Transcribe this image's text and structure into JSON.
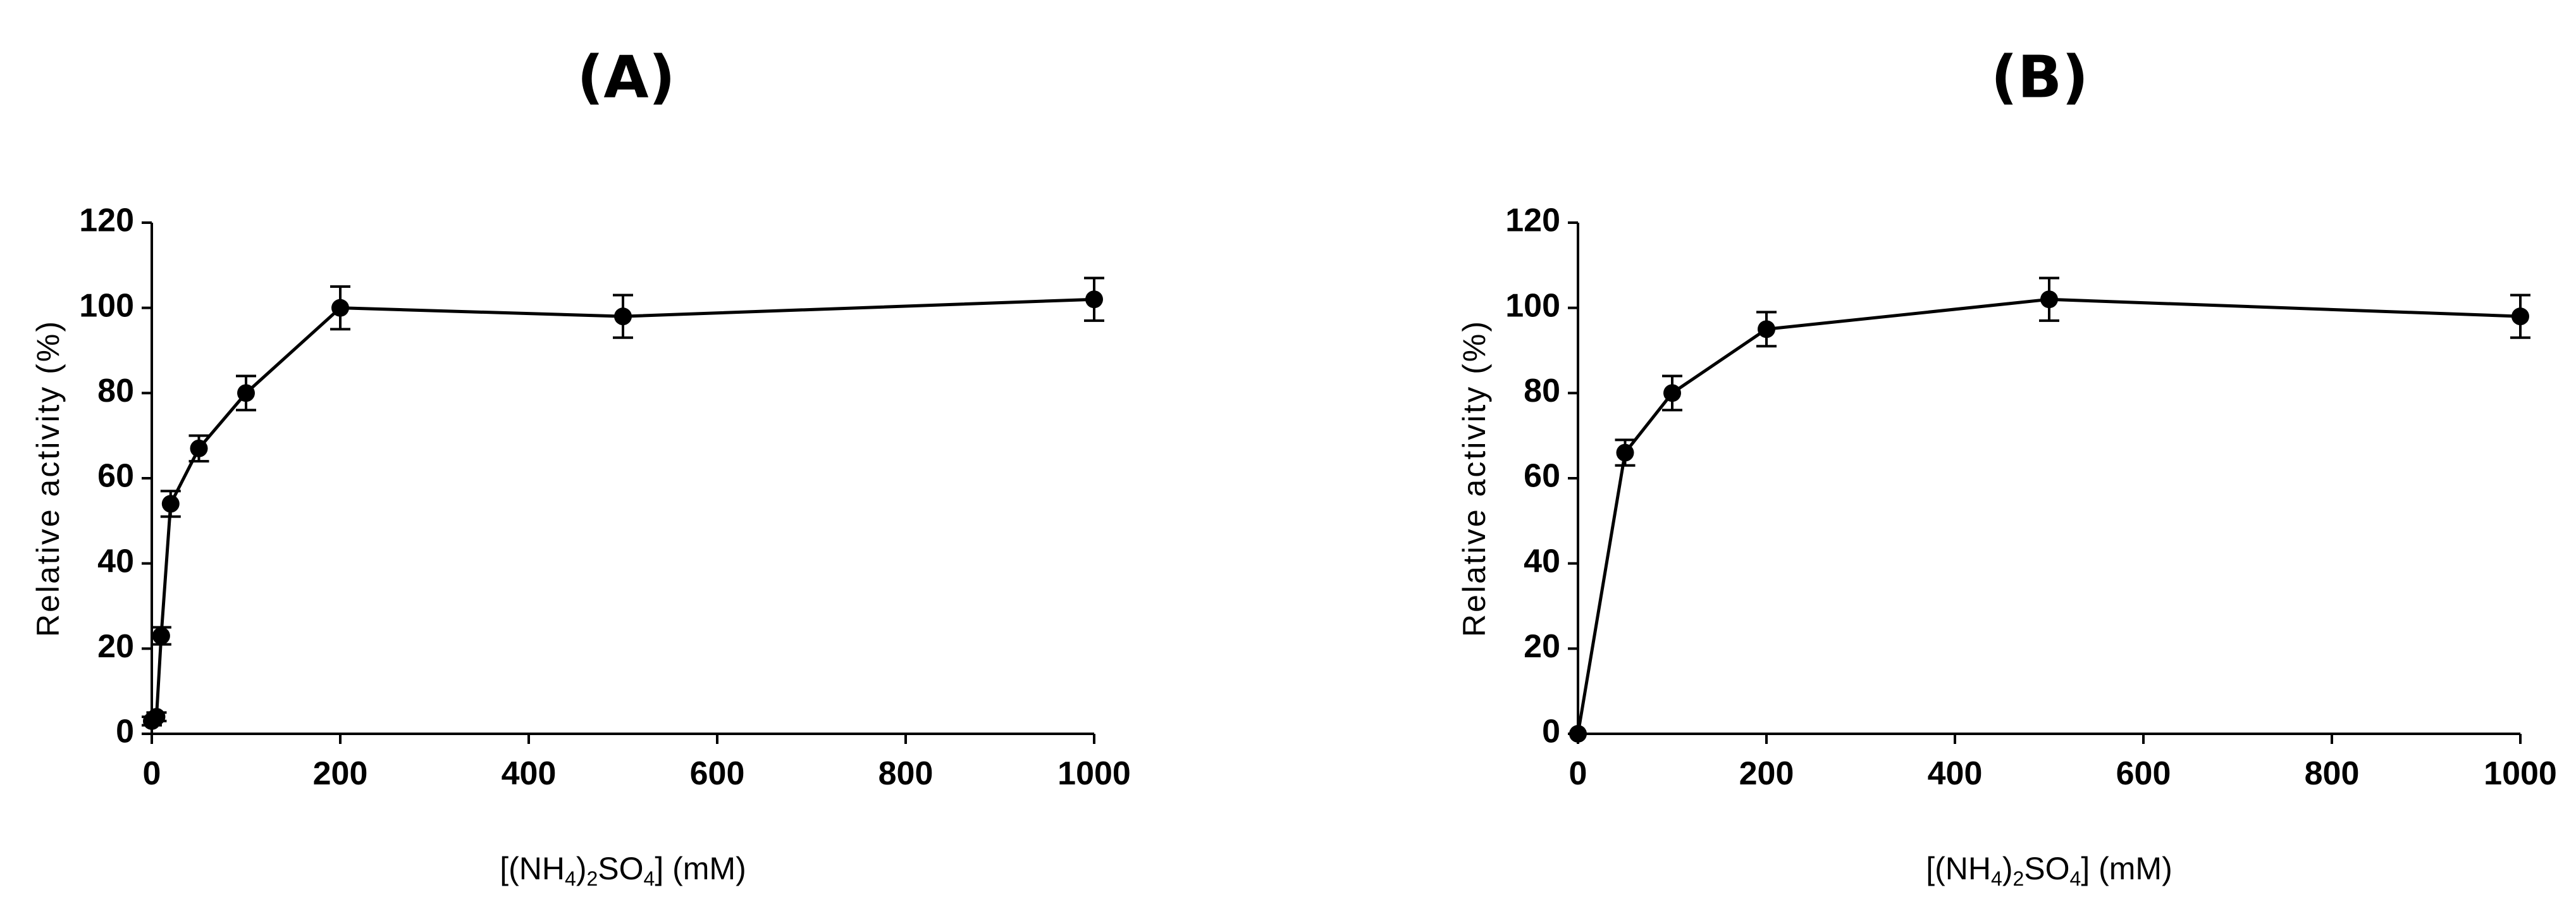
{
  "chart_data": [
    {
      "type": "line",
      "title": "(A)",
      "xlabel": "[(NH4)2SO4] (mM)",
      "xlabel_parts": {
        "pre": "[(NH",
        "sub1": "4",
        "mid": ")",
        "sub2": "2",
        "post": "SO",
        "sub3": "4",
        "end": "] (mM)"
      },
      "ylabel": "Relative activity (%)",
      "xlim": [
        0,
        1000
      ],
      "ylim": [
        0,
        120
      ],
      "xticks": [
        0,
        200,
        400,
        600,
        800,
        1000
      ],
      "yticks": [
        0,
        20,
        40,
        60,
        80,
        100,
        120
      ],
      "grid": false,
      "series": [
        {
          "x": [
            0,
            5,
            10,
            20,
            50,
            100,
            200,
            500,
            1000
          ],
          "y": [
            3,
            4,
            23,
            54,
            67,
            80,
            100,
            98,
            102
          ],
          "err": [
            1,
            1,
            2,
            3,
            3,
            4,
            5,
            5,
            5
          ]
        }
      ]
    },
    {
      "type": "line",
      "title": "(B)",
      "xlabel": "[(NH4)2SO4] (mM)",
      "xlabel_parts": {
        "pre": "[(NH",
        "sub1": "4",
        "mid": ")",
        "sub2": "2",
        "post": "SO",
        "sub3": "4",
        "end": "] (mM)"
      },
      "ylabel": "Relative activity (%)",
      "xlim": [
        0,
        1000
      ],
      "ylim": [
        0,
        120
      ],
      "xticks": [
        0,
        200,
        400,
        600,
        800,
        1000
      ],
      "yticks": [
        0,
        20,
        40,
        60,
        80,
        100,
        120
      ],
      "grid": false,
      "series": [
        {
          "x": [
            0,
            50,
            100,
            200,
            500,
            1000
          ],
          "y": [
            0,
            66,
            80,
            95,
            102,
            98
          ],
          "err": [
            0,
            3,
            4,
            4,
            5,
            5
          ]
        }
      ]
    }
  ]
}
